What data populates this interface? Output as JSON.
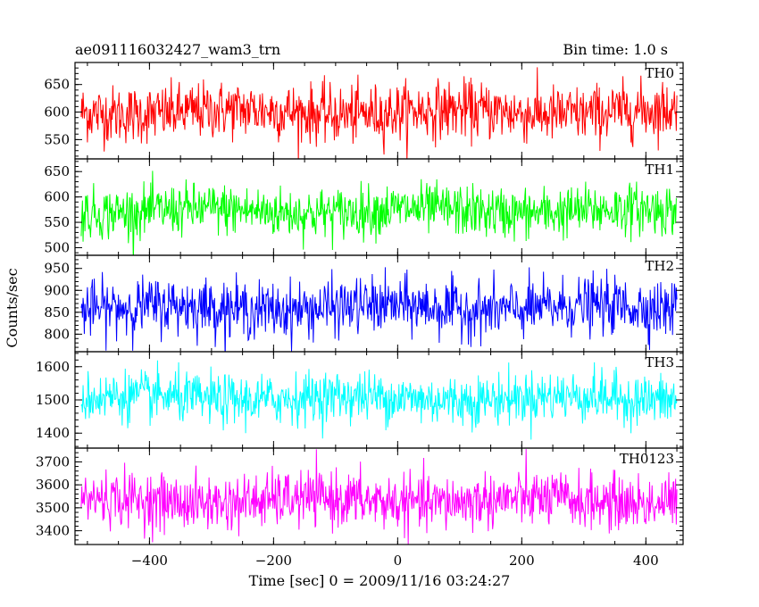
{
  "chart_data": {
    "type": "line",
    "title": "ae091116032427_wam3_trn",
    "bin_time_label": "Bin time: 1.0 s",
    "xlabel": "Time [sec] 0 = 2009/11/16 03:24:27",
    "ylabel": "Counts/sec",
    "x_range": [
      -510,
      450
    ],
    "xlim": [
      -520,
      460
    ],
    "x_ticks": [
      -400,
      -200,
      0,
      200,
      400
    ],
    "x_tick_labels": [
      "−400",
      "−200",
      "0",
      "200",
      "400"
    ],
    "grid": false,
    "series": [
      {
        "name": "TH0",
        "color": "#ff0000",
        "mean": 600,
        "spread": 26,
        "ylim": [
          515,
          690
        ],
        "yticks": [
          550,
          600,
          650
        ],
        "ytick_labels": [
          "550",
          "600",
          "650"
        ]
      },
      {
        "name": "TH1",
        "color": "#00ff00",
        "mean": 572,
        "spread": 25,
        "ylim": [
          485,
          675
        ],
        "yticks": [
          500,
          550,
          600,
          650
        ],
        "ytick_labels": [
          "500",
          "550",
          "600",
          "650"
        ]
      },
      {
        "name": "TH2",
        "color": "#0000ff",
        "mean": 860,
        "spread": 32,
        "ylim": [
          760,
          980
        ],
        "yticks": [
          800,
          850,
          900,
          950
        ],
        "ytick_labels": [
          "800",
          "850",
          "900",
          "950"
        ]
      },
      {
        "name": "TH3",
        "color": "#00ffff",
        "mean": 1505,
        "spread": 38,
        "ylim": [
          1355,
          1645
        ],
        "yticks": [
          1400,
          1500,
          1600
        ],
        "ytick_labels": [
          "1400",
          "1500",
          "1600"
        ]
      },
      {
        "name": "TH0123",
        "color": "#ff00ff",
        "mean": 3530,
        "spread": 60,
        "ylim": [
          3340,
          3760
        ],
        "yticks": [
          3400,
          3500,
          3600,
          3700
        ],
        "ytick_labels": [
          "3400",
          "3500",
          "3600",
          "3700"
        ]
      }
    ]
  }
}
